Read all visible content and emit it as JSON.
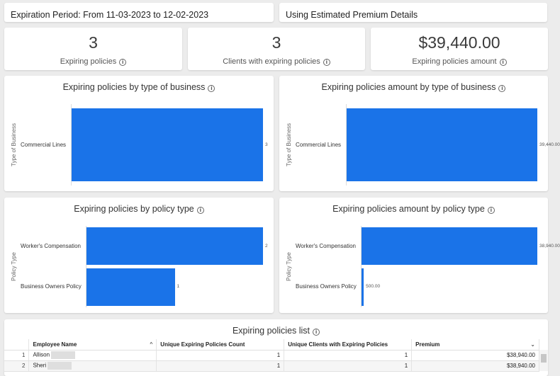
{
  "filters": {
    "expiration_period": "Expiration Period: From 11-03-2023 to 12-02-2023",
    "premium_mode": "Using Estimated Premium Details"
  },
  "kpis": [
    {
      "value": "3",
      "label": "Expiring policies"
    },
    {
      "value": "3",
      "label": "Clients with expiring policies"
    },
    {
      "value": "$39,440.00",
      "label": "Expiring policies amount"
    }
  ],
  "info_glyph": "i",
  "charts": [
    {
      "title": "Expiring policies by type of business",
      "axis_title": "Type of Business",
      "chart_data": {
        "type": "bar",
        "orientation": "horizontal",
        "categories": [
          "Commercial Lines"
        ],
        "values": [
          3
        ],
        "value_labels": [
          "3"
        ],
        "xlim": [
          0,
          3
        ]
      }
    },
    {
      "title": "Expiring policies amount by type of business",
      "axis_title": "Type of Business",
      "chart_data": {
        "type": "bar",
        "orientation": "horizontal",
        "categories": [
          "Commercial Lines"
        ],
        "values": [
          39440
        ],
        "value_labels": [
          "39,440.00"
        ],
        "xlim": [
          0,
          39440
        ]
      }
    },
    {
      "title": "Expiring policies by policy type",
      "axis_title": "Policy Type",
      "chart_data": {
        "type": "bar",
        "orientation": "horizontal",
        "categories": [
          "Worker's Compensation",
          "Business Owners Policy"
        ],
        "values": [
          2,
          1
        ],
        "value_labels": [
          "2",
          "1"
        ],
        "xlim": [
          0,
          2
        ]
      }
    },
    {
      "title": "Expiring policies amount by policy type",
      "axis_title": "Policy Type",
      "chart_data": {
        "type": "bar",
        "orientation": "horizontal",
        "categories": [
          "Worker's Compensation",
          "Business Owners Policy"
        ],
        "values": [
          38940,
          500
        ],
        "value_labels": [
          "38,940.00",
          "500.00"
        ],
        "xlim": [
          0,
          38940
        ]
      }
    }
  ],
  "table": {
    "title": "Expiring policies list",
    "columns": [
      "Employee Name",
      "Unique Expiring Policies Count",
      "Unique Clients with Expiring Policies",
      "Premium"
    ],
    "sort_up_icon": "^",
    "sort_down_icon": "⌄",
    "rows": [
      {
        "idx": "1",
        "name": "Allison",
        "count": "1",
        "clients": "1",
        "premium": "$38,940.00"
      },
      {
        "idx": "2",
        "name": "Sheri",
        "count": "1",
        "clients": "1",
        "premium": "$38,940.00"
      }
    ]
  }
}
